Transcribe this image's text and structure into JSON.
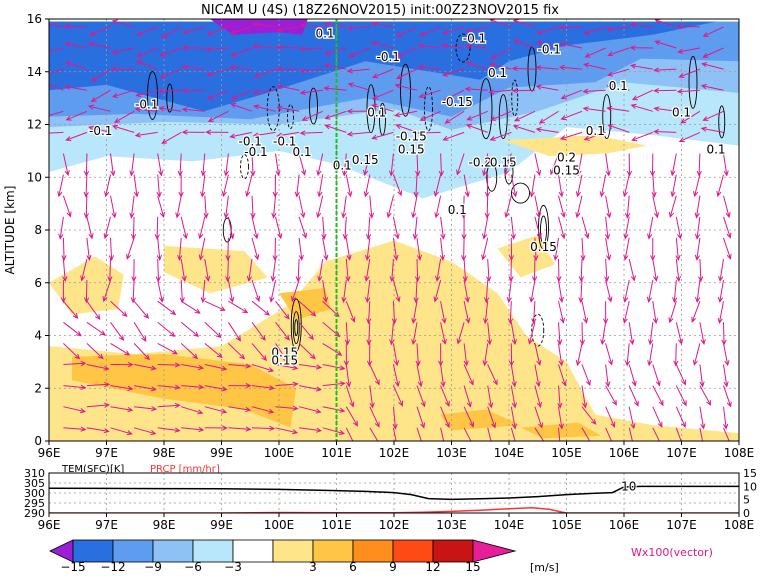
{
  "header": {
    "title": "NICAM U (4S)  (18Z26NOV2015)  init:00Z23NOV2015  fix"
  },
  "colors": {
    "neg15": "#9a1fd6",
    "neg12": "#2a6fe0",
    "neg9": "#5e9cf0",
    "neg6": "#8ec2f6",
    "neg3": "#b8e6fa",
    "zero": "#ffffff",
    "pos3": "#ffe58a",
    "pos6": "#ffc544",
    "pos9": "#ff8e1c",
    "pos12": "#ff4a14",
    "pos15": "#c81414",
    "top": "#e61e9a",
    "vector": "#e0188c",
    "contour": "#000000",
    "meridian": "#22bb22",
    "tem_line": "#000000",
    "prcp_line": "#ff3333"
  },
  "chart_data": [
    {
      "type": "contour-section",
      "title": "NICAM U (4S)  (18Z26NOV2015)  init:00Z23NOV2015  fix",
      "ylabel": "ALTITUDE [km]",
      "x_ticks": [
        "96E",
        "97E",
        "98E",
        "99E",
        "100E",
        "101E",
        "102E",
        "103E",
        "104E",
        "105E",
        "106E",
        "107E",
        "108E"
      ],
      "x_range": [
        96,
        108
      ],
      "y_ticks": [
        "0",
        "2",
        "4",
        "6",
        "8",
        "10",
        "12",
        "14",
        "16"
      ],
      "y_range": [
        0,
        16
      ],
      "marker_line_lon": 101,
      "contour_labels": [
        {
          "text": "0.1",
          "lon": 100.8,
          "alt": 15.3
        },
        {
          "text": "-0.1",
          "lon": 101.9,
          "alt": 14.4
        },
        {
          "text": "-0.1",
          "lon": 103.4,
          "alt": 15.1
        },
        {
          "text": "-0.1",
          "lon": 104.7,
          "alt": 14.7
        },
        {
          "text": "0.1",
          "lon": 103.8,
          "alt": 13.8
        },
        {
          "text": "0.1",
          "lon": 105.9,
          "alt": 13.3
        },
        {
          "text": "-0.15",
          "lon": 103.1,
          "alt": 12.7
        },
        {
          "text": "-0.1",
          "lon": 97.7,
          "alt": 12.6
        },
        {
          "text": "-0.1",
          "lon": 96.9,
          "alt": 11.6
        },
        {
          "text": "-0.1",
          "lon": 99.5,
          "alt": 11.2
        },
        {
          "text": "-0.1",
          "lon": 99.6,
          "alt": 10.8
        },
        {
          "text": "-0.1",
          "lon": 100.1,
          "alt": 11.2
        },
        {
          "text": "0.1",
          "lon": 100.4,
          "alt": 10.8
        },
        {
          "text": "0.1",
          "lon": 101.7,
          "alt": 12.3
        },
        {
          "text": "-0.15",
          "lon": 102.3,
          "alt": 11.4
        },
        {
          "text": "0.15",
          "lon": 102.3,
          "alt": 10.9
        },
        {
          "text": "0.1",
          "lon": 101.1,
          "alt": 10.3
        },
        {
          "text": "0.15",
          "lon": 101.5,
          "alt": 10.5
        },
        {
          "text": "-0.2",
          "lon": 103.5,
          "alt": 10.4
        },
        {
          "text": "0.15",
          "lon": 103.9,
          "alt": 10.4
        },
        {
          "text": "0.2",
          "lon": 105.0,
          "alt": 10.6
        },
        {
          "text": "0.15",
          "lon": 105.0,
          "alt": 10.1
        },
        {
          "text": "0.1",
          "lon": 105.5,
          "alt": 11.6
        },
        {
          "text": "0.1",
          "lon": 107.0,
          "alt": 12.3
        },
        {
          "text": "0.1",
          "lon": 107.6,
          "alt": 10.9
        },
        {
          "text": "0.1",
          "lon": 103.1,
          "alt": 8.6
        },
        {
          "text": "0.15",
          "lon": 104.6,
          "alt": 7.2
        },
        {
          "text": "0.15",
          "lon": 100.1,
          "alt": 3.2
        },
        {
          "text": "0.15",
          "lon": 100.1,
          "alt": 2.9
        }
      ]
    },
    {
      "type": "line",
      "y_left_label": "TEM(SFC)[K]",
      "y_right_label": "PRCP [mm/hr]",
      "x_ticks": [
        "96E",
        "97E",
        "98E",
        "99E",
        "100E",
        "101E",
        "102E",
        "103E",
        "104E",
        "105E",
        "106E",
        "107E",
        "108E"
      ],
      "y_left_ticks": [
        "310",
        "305",
        "300",
        "295",
        "290"
      ],
      "y_left_range": [
        290,
        310
      ],
      "y_right_ticks": [
        "15",
        "10",
        "5",
        "0"
      ],
      "y_right_range": [
        0,
        15
      ],
      "inline_label": "10",
      "series": [
        {
          "name": "TEM(SFC)[K]",
          "x": [
            96,
            97,
            98,
            99,
            100,
            100.5,
            101,
            101.5,
            102,
            102.3,
            102.6,
            103,
            103.5,
            104,
            104.5,
            105,
            105.5,
            105.8,
            106,
            106.3,
            107,
            108
          ],
          "y": [
            302.4,
            302.3,
            302.2,
            302.1,
            301.8,
            301.5,
            301.2,
            300.8,
            300.2,
            299.2,
            297.2,
            296.8,
            297.1,
            297.5,
            298.2,
            299.2,
            299.9,
            300.2,
            303.0,
            303.3,
            303.3,
            303.3
          ]
        },
        {
          "name": "PRCP [mm/hr]",
          "x": [
            96,
            99,
            100,
            101,
            102,
            102.5,
            103,
            103.5,
            104,
            104.4,
            104.7,
            104.9,
            105,
            106,
            108
          ],
          "y": [
            0,
            0,
            0.2,
            0.1,
            0.1,
            0.3,
            0.6,
            1.0,
            1.6,
            2.0,
            1.4,
            0.4,
            0,
            0,
            0
          ]
        }
      ]
    },
    {
      "type": "colorbar",
      "tick_labels": [
        "-15",
        "-12",
        "-9",
        "-6",
        "-3",
        "3",
        "6",
        "9",
        "12",
        "15"
      ],
      "units": "[m/s]",
      "vector_note": "Wx100(vector)"
    }
  ]
}
